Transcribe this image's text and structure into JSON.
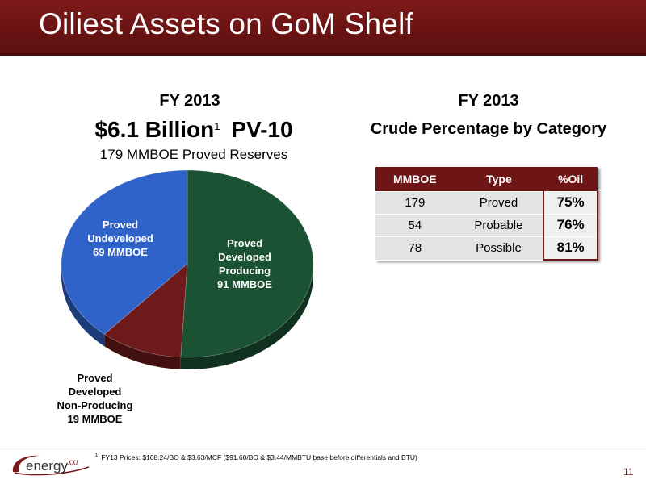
{
  "slide": {
    "title": "Oiliest Assets on GoM Shelf",
    "page_number": "11",
    "footnote_marker": "1",
    "footnote": "FY13 Prices: $108.24/BO & $3.63/MCF ($91.60/BO & $3.44/MMBTU base before differentials and BTU)",
    "logo_text": "energy",
    "logo_suffix": "XXI"
  },
  "left": {
    "fy": "FY 2013",
    "pv_value": "$6.1 Billion",
    "pv_marker": "1",
    "pv_label": "PV-10",
    "reserves": "179 MMBOE Proved Reserves"
  },
  "right": {
    "fy": "FY 2013",
    "subtitle": "Crude Percentage by Category"
  },
  "colors": {
    "title_bar": "#6e1515",
    "pdp": "#1b5233",
    "pud": "#2f63c9",
    "pdnp": "#6e1a1a"
  },
  "chart_data": [
    {
      "type": "pie",
      "title": "179 MMBOE Proved Reserves",
      "slices": [
        {
          "label": "Proved Developed Producing",
          "label_lines": [
            "Proved",
            "Developed",
            "Producing",
            "91 MMBOE"
          ],
          "value": 91,
          "unit": "MMBOE",
          "color": "#1b5233"
        },
        {
          "label": "Proved Developed Non-Producing",
          "label_lines": [
            "Proved",
            "Developed",
            "Non-Producing",
            "19 MMBOE"
          ],
          "value": 19,
          "unit": "MMBOE",
          "color": "#6e1a1a"
        },
        {
          "label": "Proved Undeveloped",
          "label_lines": [
            "Proved",
            "Undeveloped",
            "69 MMBOE"
          ],
          "value": 69,
          "unit": "MMBOE",
          "color": "#2f63c9"
        }
      ]
    },
    {
      "type": "table",
      "title": "Crude Percentage by Category",
      "columns": [
        "MMBOE",
        "Type",
        "%Oil"
      ],
      "rows": [
        [
          "179",
          "Proved",
          "75%"
        ],
        [
          "54",
          "Probable",
          "76%"
        ],
        [
          "78",
          "Possible",
          "81%"
        ]
      ]
    }
  ]
}
